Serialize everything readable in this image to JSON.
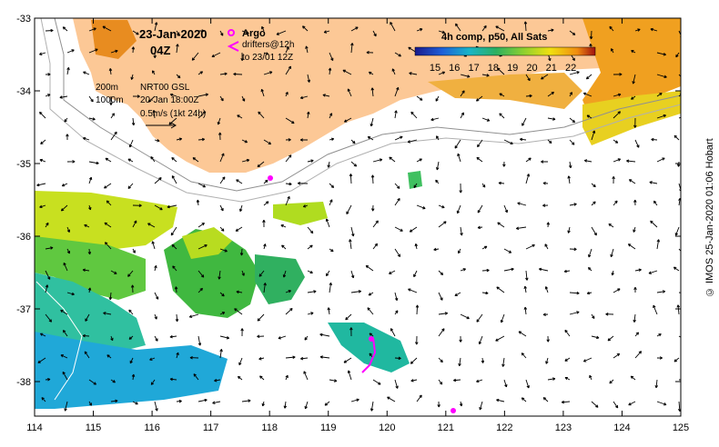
{
  "map": {
    "date": "23-Jan-2020",
    "time": "04Z",
    "contour_200": "200m",
    "contour_1000": "1000m",
    "product": "NRT00 GSL",
    "product_date": "20-Jan 18:00Z",
    "current_scale": "0.5m/s (1kt 24h)",
    "argo_label": "Argo",
    "drifters_label": "drifters@12h",
    "drifters_to": "to 23/01 12Z",
    "colorbar_title": "4h comp, p50, All Sats",
    "colorbar_ticks": [
      "15",
      "16",
      "17",
      "18",
      "19",
      "20",
      "21",
      "22"
    ],
    "lon_ticks": [
      "114",
      "115",
      "116",
      "117",
      "118",
      "119",
      "120",
      "121",
      "122",
      "123",
      "124",
      "125"
    ],
    "lat_ticks": [
      "-33",
      "-34",
      "-35",
      "-36",
      "-37",
      "-38"
    ],
    "copyright": "© IMOS 25-Jan-2020 01:06 Hobart",
    "colors": {
      "land": "#fcc896",
      "frame": "#000000",
      "drifter": "#ff00ff"
    }
  }
}
